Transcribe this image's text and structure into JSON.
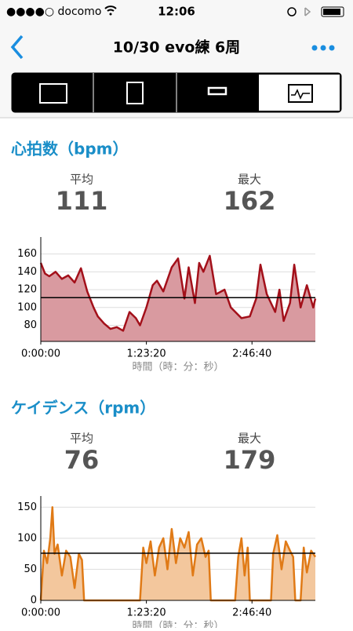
{
  "status_bar": {
    "carrier": "●●●●○ docomo",
    "time": "12:06"
  },
  "header": {
    "title": "10/30  evo練 6周"
  },
  "chart_data": [
    {
      "type": "line",
      "title": "心拍数（bpm）",
      "stats": [
        {
          "label": "平均",
          "value": 111
        },
        {
          "label": "最大",
          "value": 162
        }
      ],
      "x": [
        0,
        200,
        400,
        700,
        1000,
        1300,
        1600,
        1900,
        2200,
        2500,
        2700,
        3000,
        3300,
        3600,
        3900,
        4200,
        4500,
        4700,
        5000,
        5300,
        5500,
        5800,
        6200,
        6500,
        6800,
        7000,
        7300,
        7500,
        7700,
        8000,
        8300,
        8700,
        9000,
        9500,
        9900,
        10200,
        10400,
        10700,
        11100,
        11300,
        11500,
        11800,
        12000,
        12300,
        12600,
        12900,
        13000
      ],
      "values": [
        150,
        138,
        135,
        140,
        132,
        136,
        128,
        144,
        118,
        100,
        90,
        82,
        76,
        78,
        74,
        95,
        88,
        80,
        100,
        125,
        130,
        118,
        145,
        155,
        110,
        145,
        105,
        150,
        140,
        158,
        115,
        120,
        100,
        88,
        90,
        110,
        148,
        115,
        95,
        120,
        85,
        105,
        148,
        100,
        125,
        100,
        110
      ],
      "color": "#a3101a",
      "fill": "#d99aa0",
      "xlabel": "時間（時：分：秒）",
      "xlim": [
        0,
        13000
      ],
      "xticks": [
        {
          "value": 0,
          "label": "0:00:00"
        },
        {
          "value": 5000,
          "label": "1:23:20"
        },
        {
          "value": 10000,
          "label": "2:46:40"
        }
      ],
      "ylim": [
        62,
        179
      ],
      "yticks": [
        80,
        100,
        120,
        140,
        160
      ],
      "grid": true
    },
    {
      "type": "line",
      "title": "ケイデンス（rpm）",
      "stats": [
        {
          "label": "平均",
          "value": 76
        },
        {
          "label": "最大",
          "value": 179
        }
      ],
      "x": [
        0,
        150,
        300,
        450,
        550,
        650,
        800,
        1000,
        1200,
        1400,
        1600,
        1800,
        1950,
        2050,
        4700,
        4850,
        5000,
        5200,
        5400,
        5600,
        5800,
        6000,
        6200,
        6400,
        6600,
        6800,
        7000,
        7200,
        7400,
        7600,
        7800,
        7950,
        8050,
        9200,
        9350,
        9500,
        9650,
        9800,
        9900,
        10900,
        11000,
        11200,
        11400,
        11600,
        11800,
        11950,
        12050,
        12300,
        12450,
        12600,
        12800,
        13000
      ],
      "values": [
        0,
        80,
        60,
        100,
        150,
        75,
        90,
        40,
        80,
        70,
        20,
        75,
        65,
        0,
        0,
        85,
        60,
        95,
        40,
        85,
        100,
        50,
        115,
        60,
        100,
        85,
        110,
        40,
        90,
        100,
        70,
        80,
        0,
        0,
        70,
        100,
        40,
        85,
        0,
        0,
        75,
        105,
        50,
        95,
        80,
        70,
        0,
        0,
        85,
        45,
        80,
        70
      ],
      "color": "#e07a16",
      "fill": "#f3c79d",
      "xlabel": "時間（時：分：秒）",
      "xlim": [
        0,
        13000
      ],
      "xticks": [
        {
          "value": 0,
          "label": "0:00:00"
        },
        {
          "value": 5000,
          "label": "1:23:20"
        },
        {
          "value": 10000,
          "label": "2:46:40"
        }
      ],
      "ylim": [
        0,
        168
      ],
      "yticks": [
        0,
        50,
        100,
        150
      ],
      "grid": true
    }
  ]
}
